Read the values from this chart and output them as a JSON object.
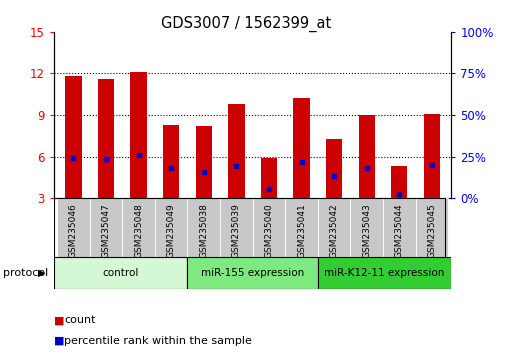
{
  "title": "GDS3007 / 1562399_at",
  "samples": [
    "GSM235046",
    "GSM235047",
    "GSM235048",
    "GSM235049",
    "GSM235038",
    "GSM235039",
    "GSM235040",
    "GSM235041",
    "GSM235042",
    "GSM235043",
    "GSM235044",
    "GSM235045"
  ],
  "bar_heights": [
    11.8,
    11.6,
    12.1,
    8.3,
    8.2,
    9.8,
    5.9,
    10.2,
    7.3,
    9.0,
    5.3,
    9.1
  ],
  "blue_dot_y": [
    5.9,
    5.8,
    6.1,
    5.2,
    4.9,
    5.3,
    3.7,
    5.6,
    4.6,
    5.2,
    3.3,
    5.4
  ],
  "bar_color": "#cc0000",
  "dot_color": "#0000cc",
  "ylim_left": [
    3,
    15
  ],
  "yticks_left": [
    3,
    6,
    9,
    12,
    15
  ],
  "ylim_right": [
    0,
    100
  ],
  "yticks_right": [
    0,
    25,
    50,
    75,
    100
  ],
  "groups": [
    {
      "label": "control",
      "span": [
        0,
        4
      ],
      "color": "#d4f7d4"
    },
    {
      "label": "miR-155 expression",
      "span": [
        4,
        8
      ],
      "color": "#7fe87f"
    },
    {
      "label": "miR-K12-11 expression",
      "span": [
        8,
        12
      ],
      "color": "#33cc33"
    }
  ],
  "group_border_color": "#000000",
  "xtick_bg_color": "#c8c8c8",
  "xtick_border_color": "#888888",
  "protocol_label": "protocol",
  "legend_count_color": "#cc0000",
  "legend_pct_color": "#0000cc",
  "background_color": "#ffffff",
  "plot_bg": "#ffffff",
  "bar_width": 0.5,
  "baseline": 3.0
}
